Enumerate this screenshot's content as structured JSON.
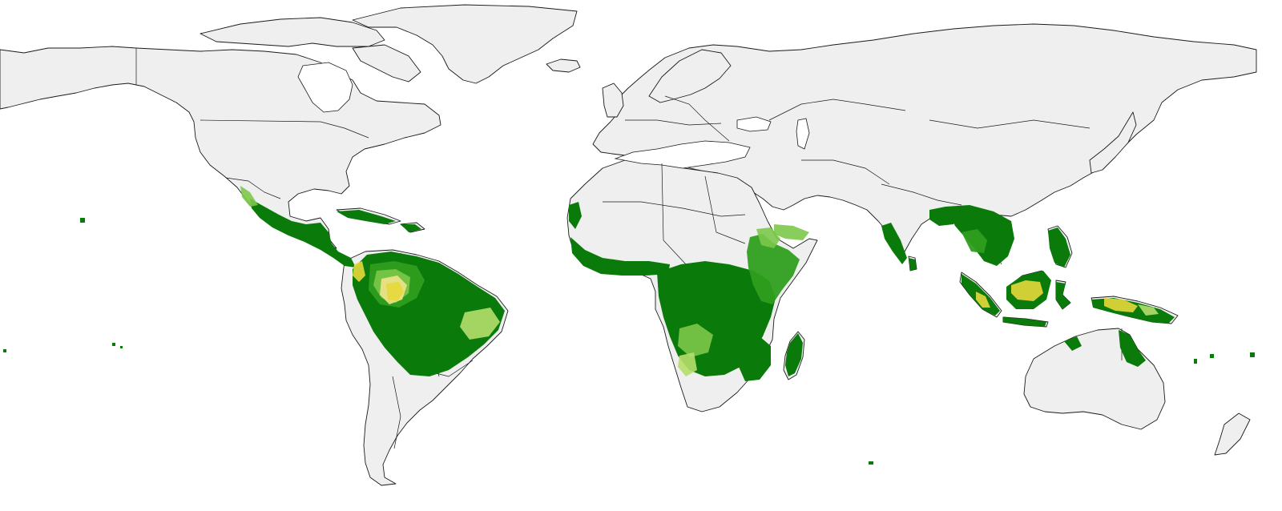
{
  "map": {
    "type": "world-choropleth",
    "projection": "equirectangular",
    "colors": {
      "ocean": "#ffffff",
      "land_no_data": "#efefef",
      "boundary": "#1a1a1a",
      "dark_green": "#0a7a0a",
      "mid_green": "#2f9e1f",
      "light_green": "#7cc84a",
      "pale_green": "#b5de6a",
      "yellow": "#e6d83a",
      "yellow_light": "#efe48a"
    },
    "highlighted_regions": [
      "central-america",
      "amazon-basin",
      "colombia-yellow-patch",
      "west-africa-coast",
      "central-africa",
      "east-africa",
      "southern-africa",
      "madagascar",
      "south-asia",
      "southeast-asia",
      "borneo",
      "new-guinea",
      "northern-australia"
    ]
  }
}
